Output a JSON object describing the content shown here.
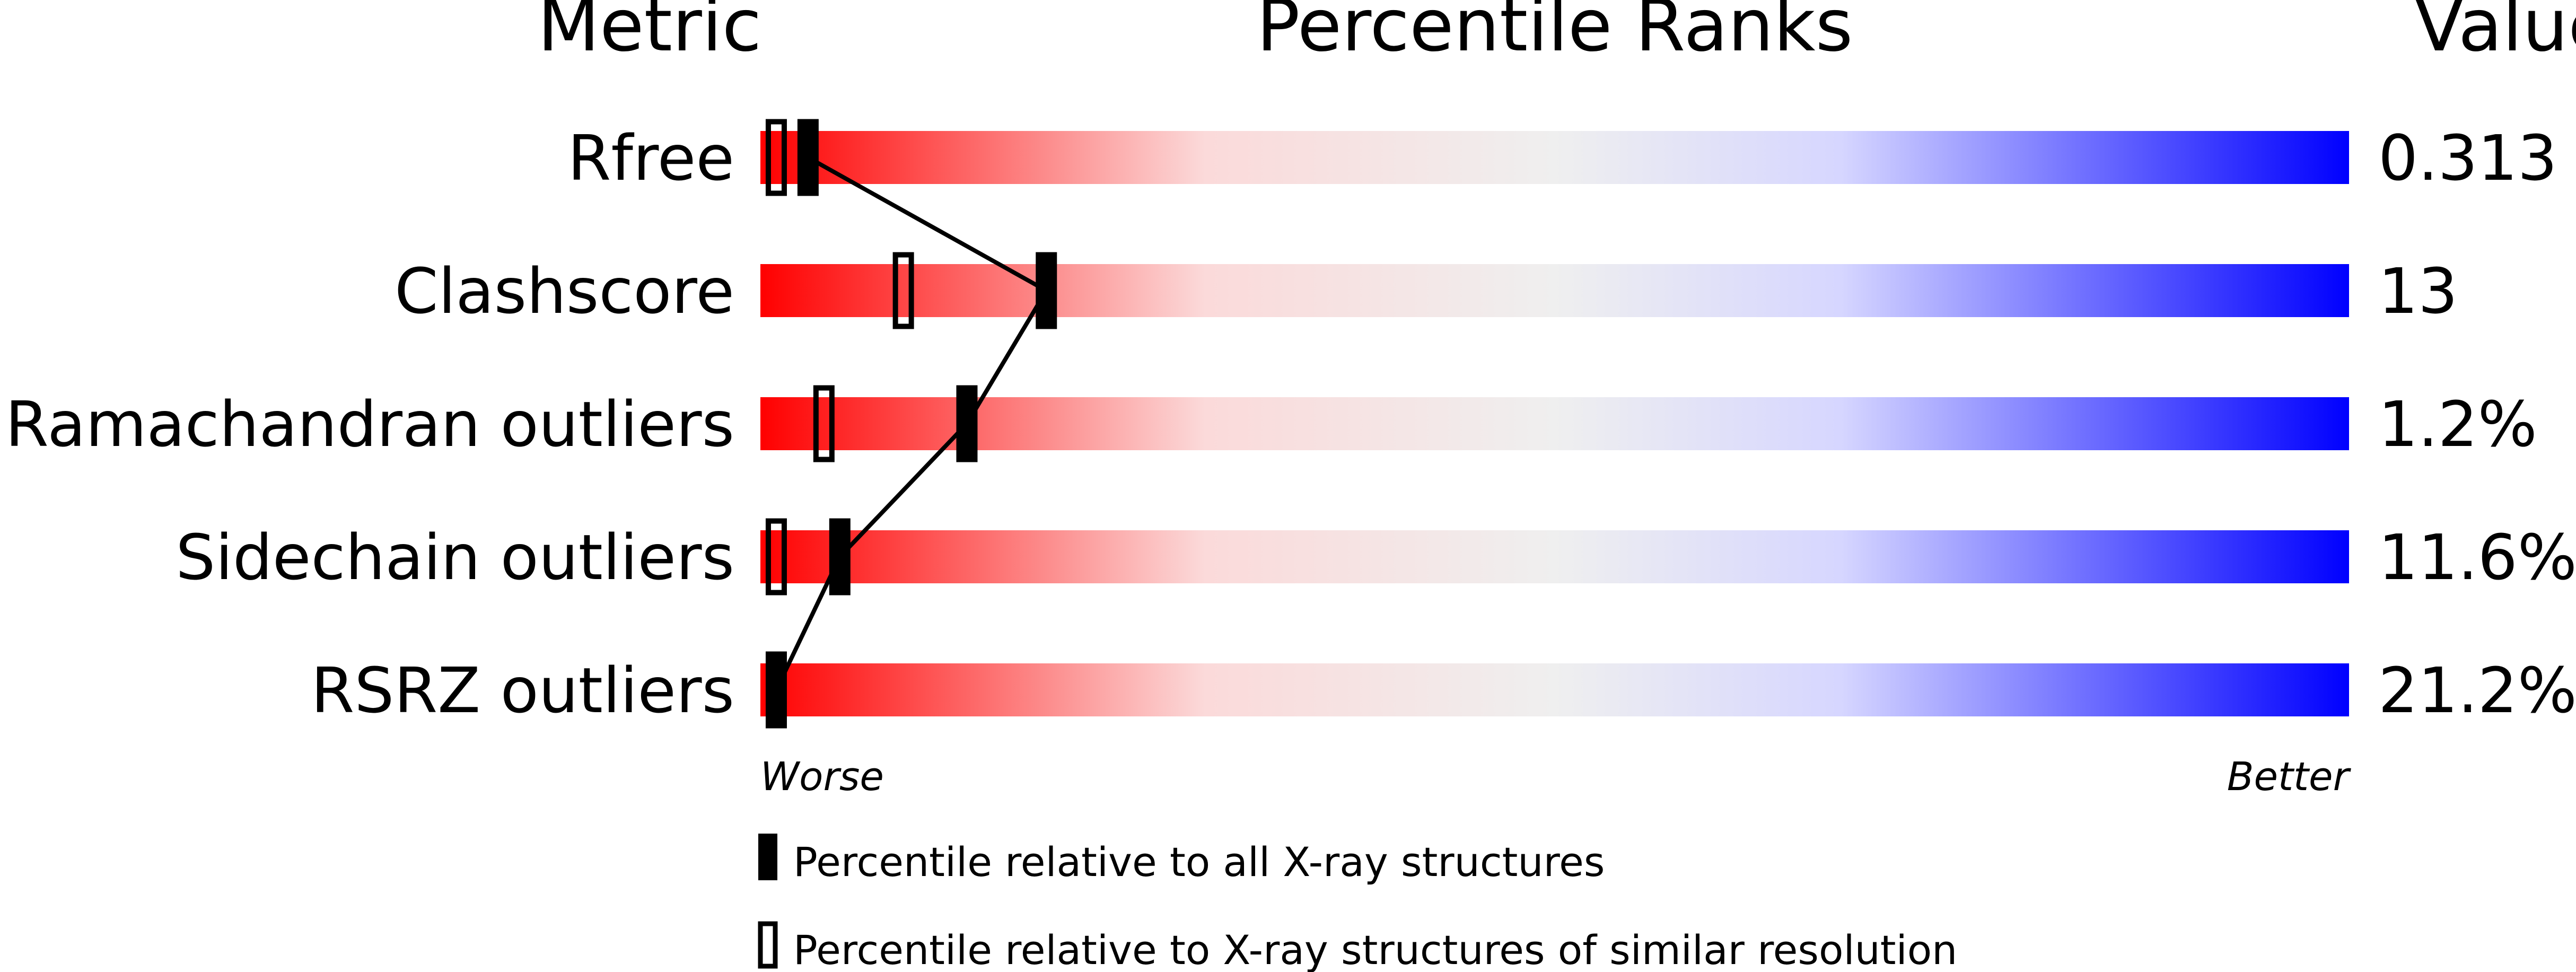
{
  "chart_data": {
    "type": "percentile-bar",
    "headers": {
      "metric": "Metric",
      "ranks": "Percentile Ranks",
      "value": "Value"
    },
    "xlim": [
      0,
      100
    ],
    "axis_labels": {
      "left": "Worse",
      "right": "Better"
    },
    "gradient_colors": [
      "#ff0000",
      "#f0f0f0",
      "#0000ff"
    ],
    "rows": [
      {
        "metric": "Rfree",
        "value": "0.313",
        "percentile_all": 3,
        "percentile_similar": 1
      },
      {
        "metric": "Clashscore",
        "value": "13",
        "percentile_all": 18,
        "percentile_similar": 9
      },
      {
        "metric": "Ramachandran outliers",
        "value": "1.2%",
        "percentile_all": 13,
        "percentile_similar": 4
      },
      {
        "metric": "Sidechain outliers",
        "value": "11.6%",
        "percentile_all": 5,
        "percentile_similar": 1
      },
      {
        "metric": "RSRZ outliers",
        "value": "21.2%",
        "percentile_all": 1,
        "percentile_similar": null
      }
    ],
    "legend": [
      {
        "marker": "filled",
        "label": "Percentile relative to all X-ray structures"
      },
      {
        "marker": "open",
        "label": "Percentile relative to X-ray structures of similar resolution"
      }
    ]
  }
}
